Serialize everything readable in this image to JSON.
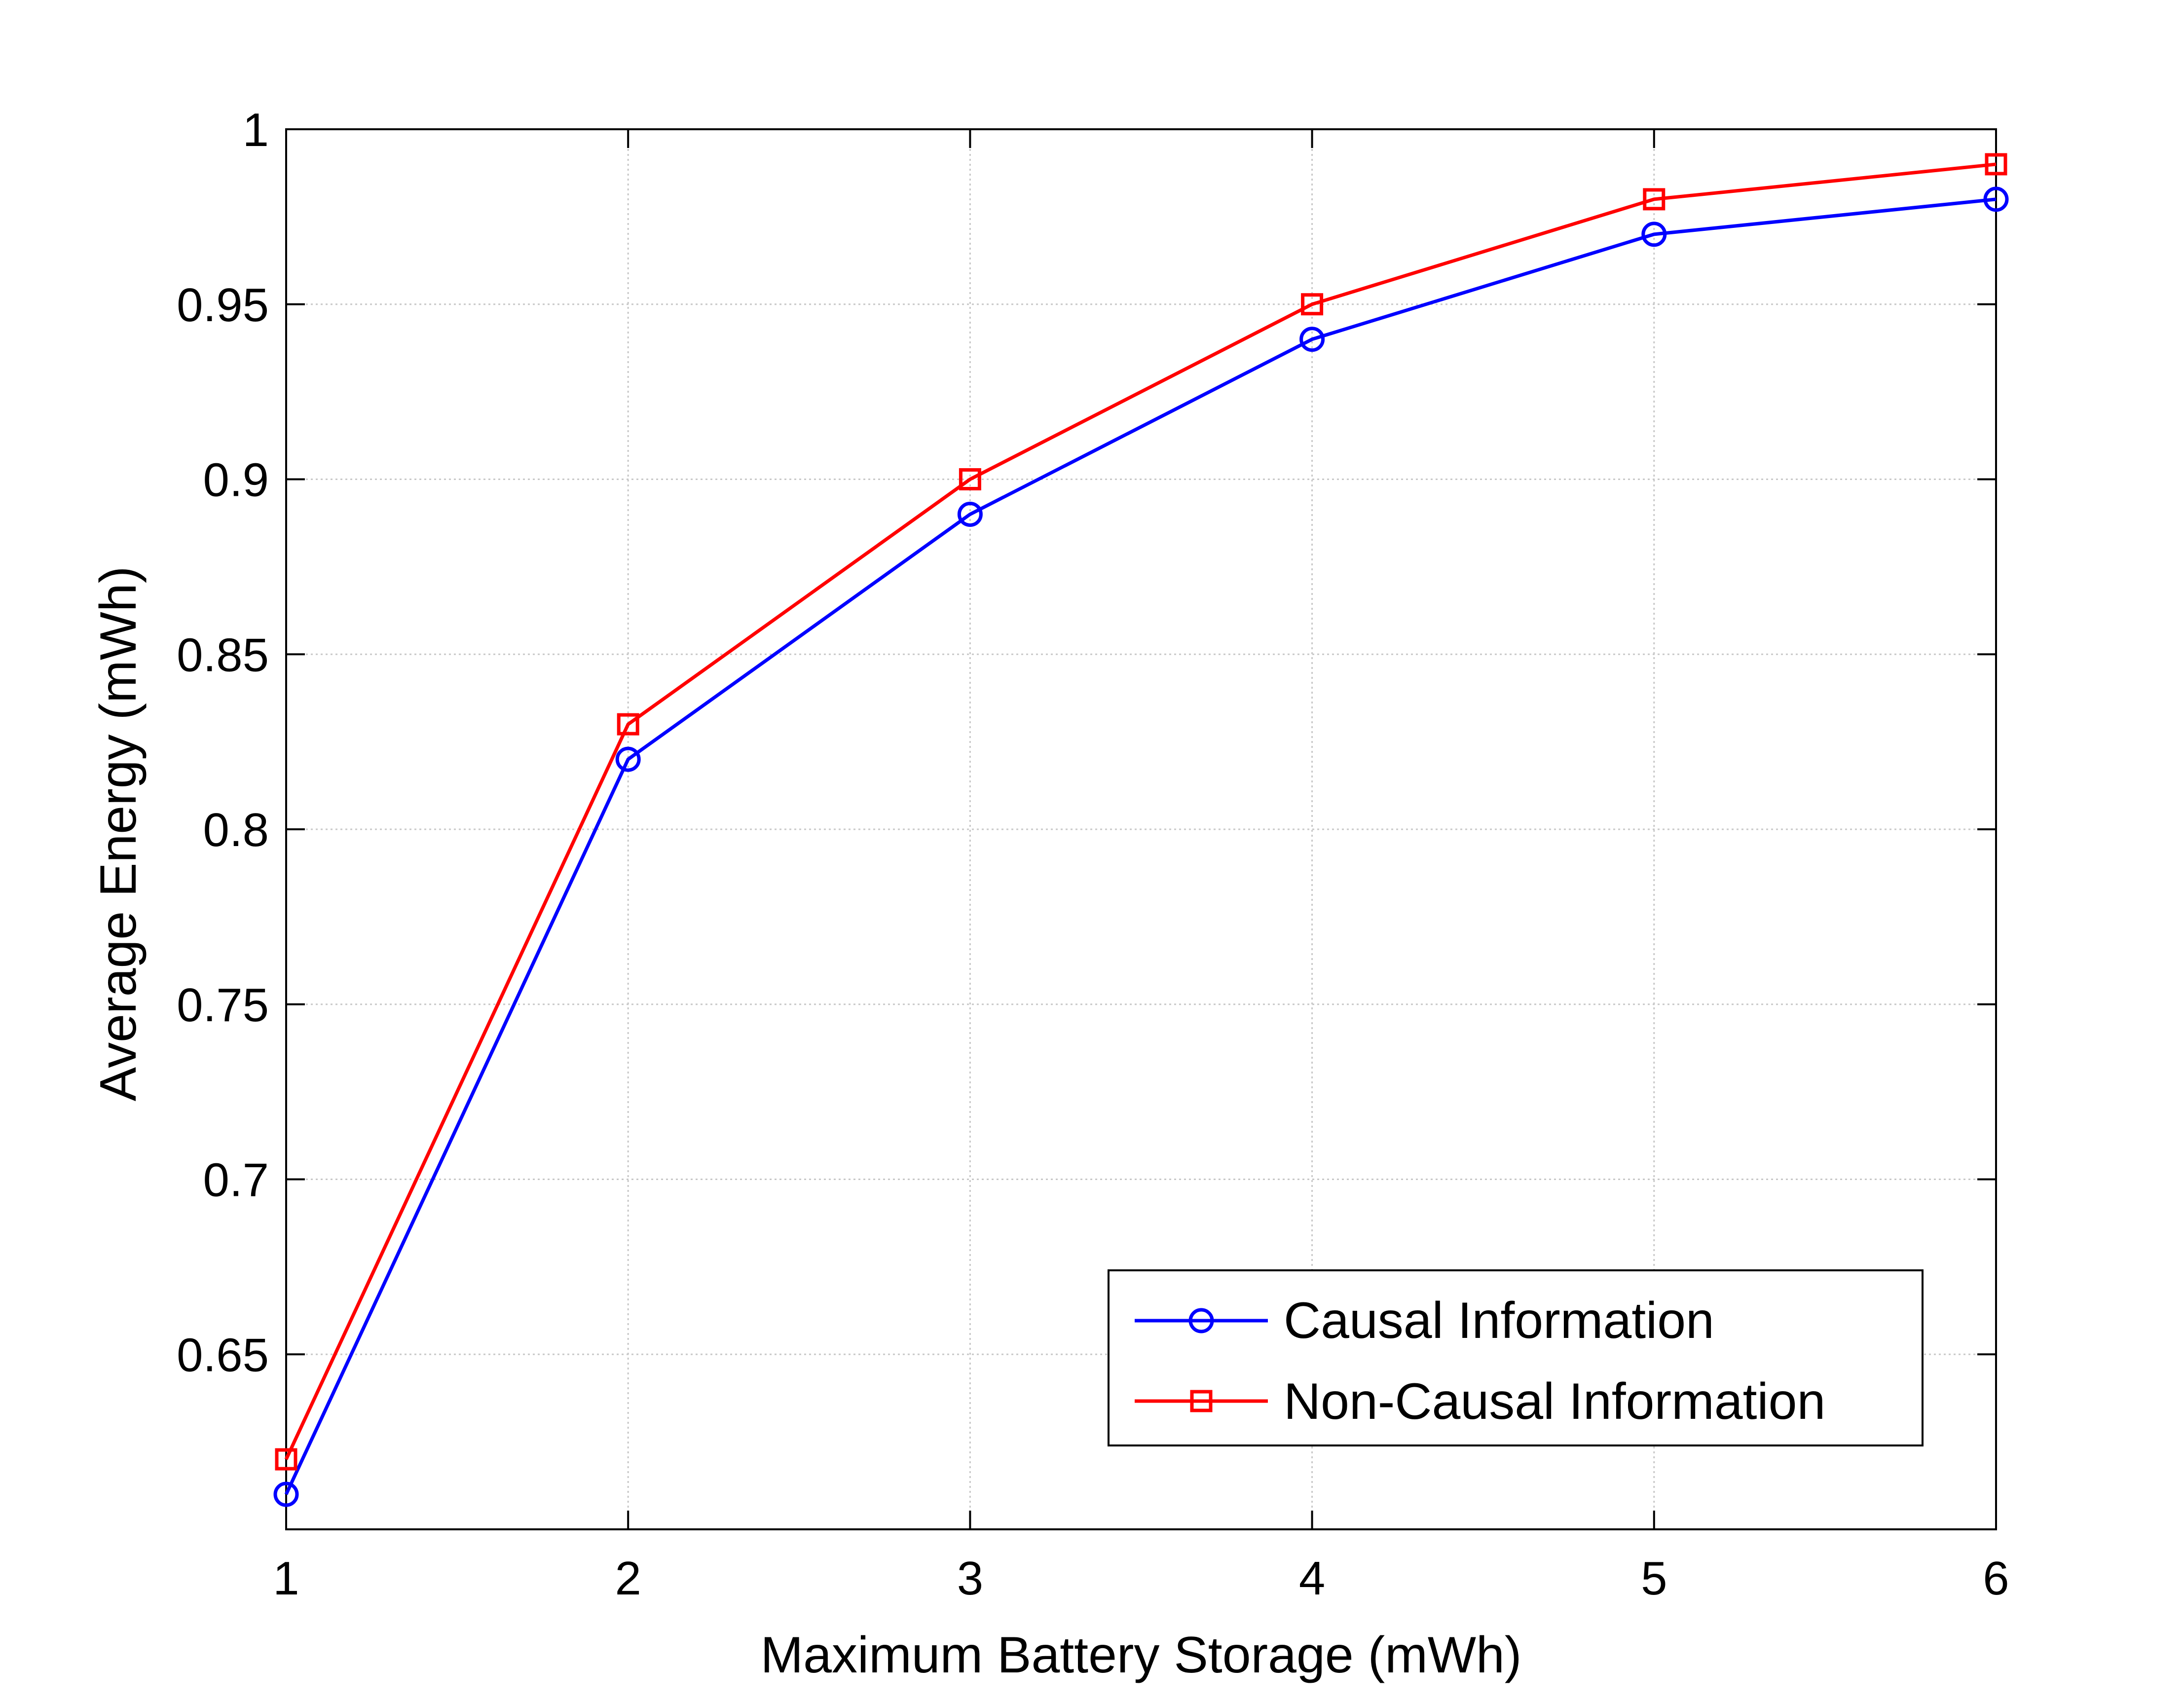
{
  "chart_data": {
    "type": "line",
    "title": "",
    "xlabel": "Maximum Battery Storage (mWh)",
    "ylabel": "Average Energy (mWh)",
    "x": [
      1,
      2,
      3,
      4,
      5,
      6
    ],
    "xlim": [
      1,
      6
    ],
    "ylim": [
      0.6,
      1.0
    ],
    "xticks": [
      1,
      2,
      3,
      4,
      5,
      6
    ],
    "xtick_labels": [
      "1",
      "2",
      "3",
      "4",
      "5",
      "6"
    ],
    "yticks": [
      0.65,
      0.7,
      0.75,
      0.8,
      0.85,
      0.9,
      0.95,
      1.0
    ],
    "ytick_labels": [
      "0.65",
      "0.7",
      "0.75",
      "0.8",
      "0.85",
      "0.9",
      "0.95",
      "1"
    ],
    "grid": true,
    "legend_position": "bottom-right",
    "series": [
      {
        "name": "Causal Information",
        "color": "#0000ff",
        "marker": "circle",
        "values": [
          0.61,
          0.82,
          0.89,
          0.94,
          0.97,
          0.98
        ]
      },
      {
        "name": "Non-Causal Information",
        "color": "#ff0000",
        "marker": "square",
        "values": [
          0.62,
          0.83,
          0.9,
          0.95,
          0.98,
          0.99
        ]
      }
    ]
  }
}
